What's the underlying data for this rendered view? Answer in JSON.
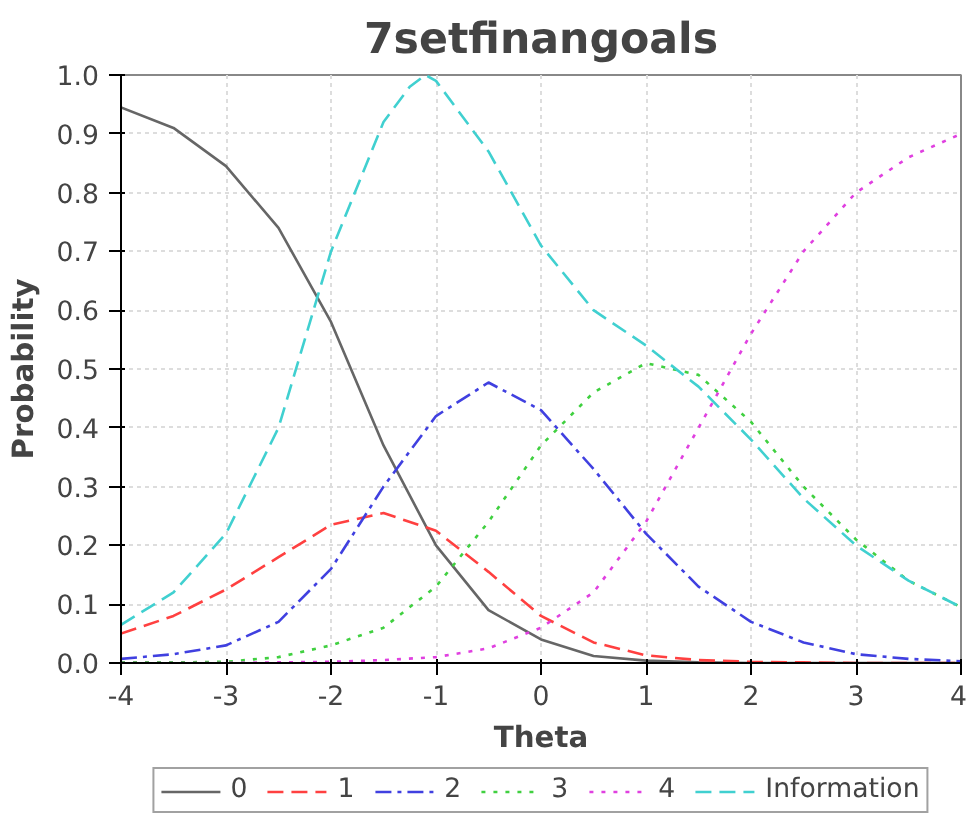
{
  "chart_data": {
    "type": "line",
    "title": "7setfinangoals",
    "xlabel": "Theta",
    "ylabel": "Probability",
    "x": [
      -4,
      -3.5,
      -3,
      -2.5,
      -2,
      -1.5,
      -1,
      -0.5,
      0,
      0.5,
      1,
      1.5,
      2,
      2.5,
      3,
      3.5,
      4
    ],
    "series": [
      {
        "name": "0",
        "color": "#666666",
        "line_style": "solid",
        "values": [
          0.945,
          0.91,
          0.845,
          0.74,
          0.58,
          0.37,
          0.2,
          0.09,
          0.04,
          0.012,
          0.004,
          0.001,
          0,
          0,
          0,
          0,
          0
        ]
      },
      {
        "name": "1",
        "color": "#ff4040",
        "line_style": "dashed",
        "values": [
          0.05,
          0.08,
          0.125,
          0.18,
          0.235,
          0.255,
          0.225,
          0.155,
          0.08,
          0.035,
          0.013,
          0.005,
          0.002,
          0.001,
          0,
          0,
          0
        ]
      },
      {
        "name": "2",
        "color": "#4040e0",
        "line_style": "dashdot",
        "values": [
          0.007,
          0.015,
          0.03,
          0.07,
          0.16,
          0.3,
          0.42,
          0.477,
          0.43,
          0.33,
          0.22,
          0.13,
          0.07,
          0.035,
          0.015,
          0.007,
          0.003
        ]
      },
      {
        "name": "3",
        "color": "#40d040",
        "line_style": "dotted",
        "values": [
          0.001,
          0.001,
          0.002,
          0.01,
          0.03,
          0.06,
          0.13,
          0.24,
          0.37,
          0.46,
          0.51,
          0.49,
          0.41,
          0.3,
          0.21,
          0.14,
          0.095
        ]
      },
      {
        "name": "4",
        "color": "#e040e0",
        "line_style": "dotted",
        "values": [
          0,
          0,
          0,
          0.001,
          0.002,
          0.005,
          0.01,
          0.025,
          0.06,
          0.12,
          0.24,
          0.4,
          0.56,
          0.7,
          0.8,
          0.86,
          0.9
        ]
      },
      {
        "name": "Information",
        "color": "#40d0d0",
        "line_style": "dashed",
        "x": [
          -4,
          -3.5,
          -3,
          -2.5,
          -2,
          -1.5,
          -1.25,
          -1.1,
          -1,
          -0.5,
          0,
          0.5,
          1,
          1.5,
          2,
          2.5,
          3,
          3.5,
          4
        ],
        "values": [
          0.065,
          0.12,
          0.22,
          0.4,
          0.7,
          0.92,
          0.98,
          1.0,
          0.99,
          0.87,
          0.71,
          0.6,
          0.54,
          0.47,
          0.38,
          0.28,
          0.2,
          0.14,
          0.095
        ]
      }
    ],
    "xlim": [
      -4,
      4
    ],
    "ylim": [
      0,
      1
    ],
    "xticks": [
      -4,
      -3,
      -2,
      -1,
      0,
      1,
      2,
      3,
      4
    ],
    "yticks": [
      {
        "value": 0,
        "label": "0.0"
      },
      {
        "value": 0.1,
        "label": "0.1"
      },
      {
        "value": 0.2,
        "label": "0.2"
      },
      {
        "value": 0.3,
        "label": "0.3"
      },
      {
        "value": 0.4,
        "label": "0.4"
      },
      {
        "value": 0.5,
        "label": "0.5"
      },
      {
        "value": 0.6,
        "label": "0.6"
      },
      {
        "value": 0.7,
        "label": "0.7"
      },
      {
        "value": 0.8,
        "label": "0.8"
      },
      {
        "value": 0.9,
        "label": "0.9"
      },
      {
        "value": 1,
        "label": "1.0"
      }
    ],
    "grid": true,
    "legend": "bottom"
  }
}
